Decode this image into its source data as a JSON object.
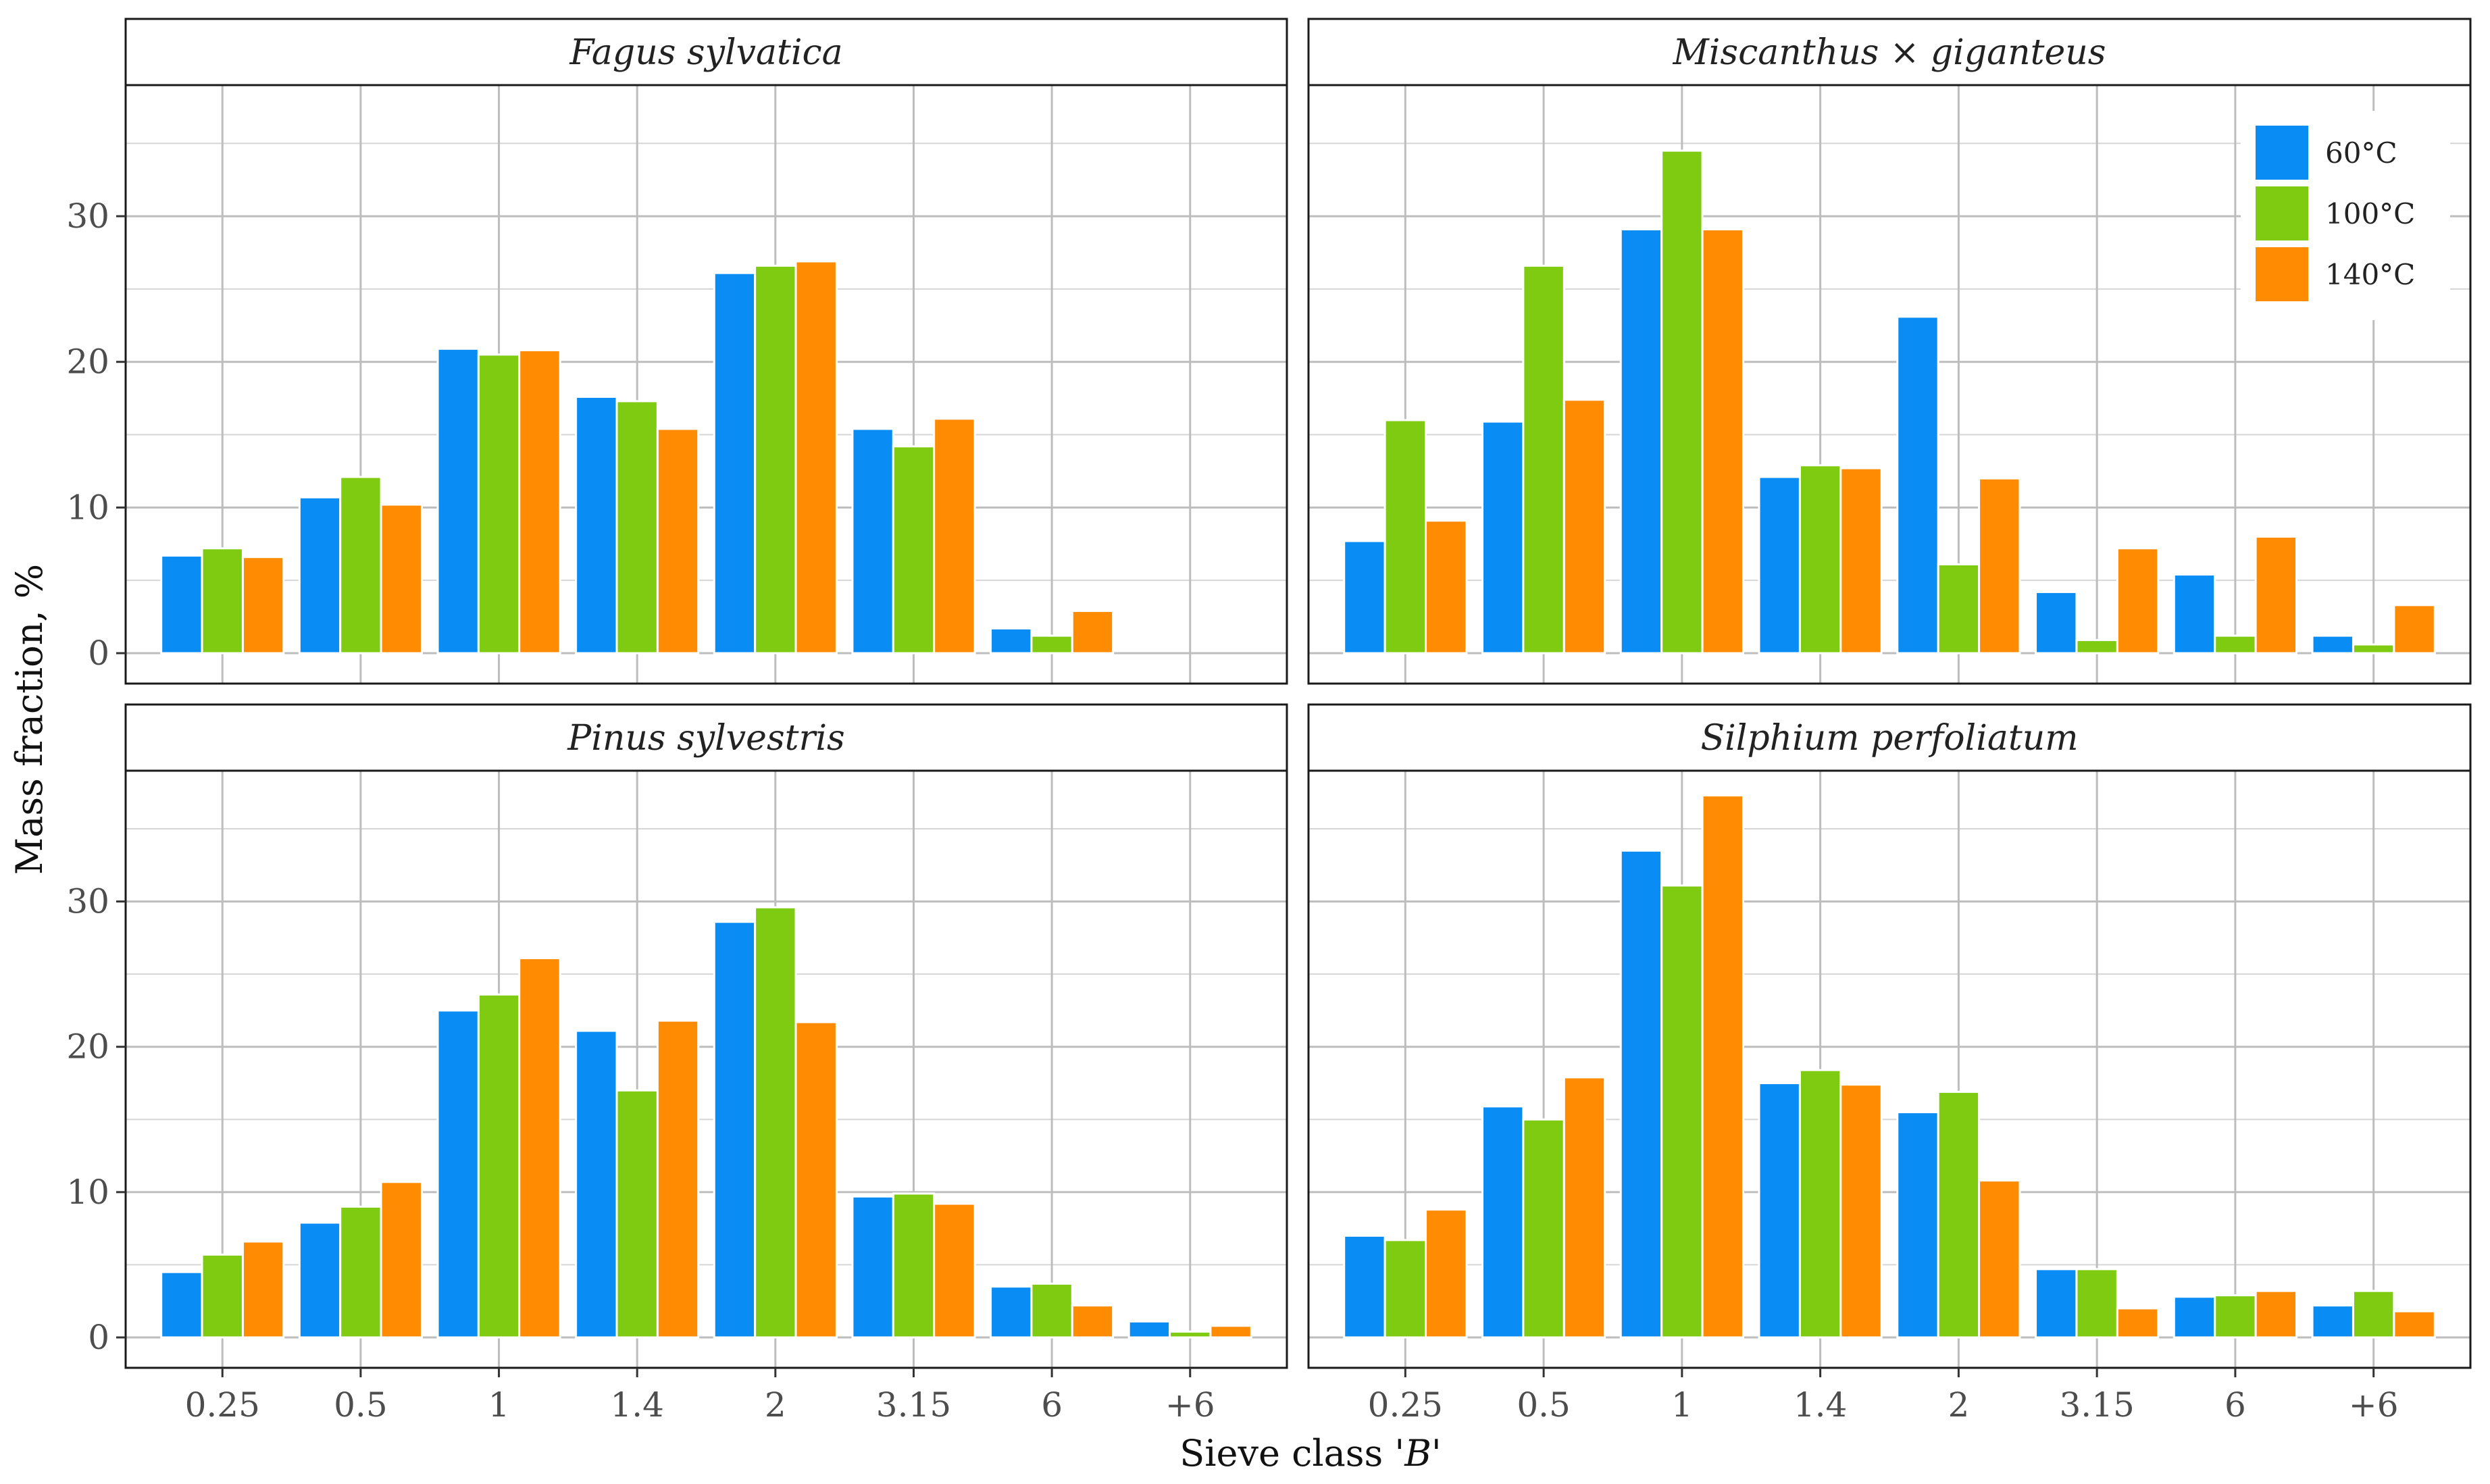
{
  "chart_data": {
    "type": "bar",
    "facet_layout": "2x2",
    "categories": [
      "0.25",
      "0.5",
      "1",
      "1.4",
      "2",
      "3.15",
      "6",
      "+6"
    ],
    "ylim": [
      0,
      39
    ],
    "yticks": [
      0,
      10,
      20,
      30
    ],
    "xlabel": "Sieve class ",
    "xlabel_symbol": "'B'",
    "ylabel": "Mass fraction, %",
    "grid": true,
    "legend": {
      "placement": "top-right",
      "panel": 1,
      "entries": [
        "60°C",
        "100°C",
        "140°C"
      ]
    },
    "series_colors": [
      "#0a8cf5",
      "#7ecb12",
      "#ff8b03"
    ],
    "panels": [
      {
        "title": "Fagus sylvatica",
        "series": [
          {
            "name": "60°C",
            "values": [
              6.7,
              10.7,
              20.9,
              17.6,
              26.1,
              15.4,
              1.7,
              0
            ]
          },
          {
            "name": "100°C",
            "values": [
              7.2,
              12.1,
              20.5,
              17.3,
              26.6,
              14.2,
              1.2,
              0
            ]
          },
          {
            "name": "140°C",
            "values": [
              6.6,
              10.2,
              20.8,
              15.4,
              26.9,
              16.1,
              2.9,
              0
            ]
          }
        ]
      },
      {
        "title": "Miscanthus × giganteus",
        "series": [
          {
            "name": "60°C",
            "values": [
              7.7,
              15.9,
              29.1,
              12.1,
              23.1,
              4.2,
              5.4,
              1.2
            ]
          },
          {
            "name": "100°C",
            "values": [
              16.0,
              26.6,
              34.5,
              12.9,
              6.1,
              0.9,
              1.2,
              0.6
            ]
          },
          {
            "name": "140°C",
            "values": [
              9.1,
              17.4,
              29.1,
              12.7,
              12.0,
              7.2,
              8.0,
              3.3
            ]
          }
        ]
      },
      {
        "title": "Pinus sylvestris",
        "series": [
          {
            "name": "60°C",
            "values": [
              4.5,
              7.9,
              22.5,
              21.1,
              28.6,
              9.7,
              3.5,
              1.1
            ]
          },
          {
            "name": "100°C",
            "values": [
              5.7,
              9.0,
              23.6,
              17.0,
              29.6,
              9.9,
              3.7,
              0.4
            ]
          },
          {
            "name": "140°C",
            "values": [
              6.6,
              10.7,
              26.1,
              21.8,
              21.7,
              9.2,
              2.2,
              0.8
            ]
          }
        ]
      },
      {
        "title": "Silphium perfoliatum",
        "series": [
          {
            "name": "60°C",
            "values": [
              7.0,
              15.9,
              33.5,
              17.5,
              15.5,
              4.7,
              2.8,
              2.2
            ]
          },
          {
            "name": "100°C",
            "values": [
              6.7,
              15.0,
              31.1,
              18.4,
              16.9,
              4.7,
              2.9,
              3.2
            ]
          },
          {
            "name": "140°C",
            "values": [
              8.8,
              17.9,
              37.3,
              17.4,
              10.8,
              2.0,
              3.2,
              1.8
            ]
          }
        ]
      }
    ]
  }
}
